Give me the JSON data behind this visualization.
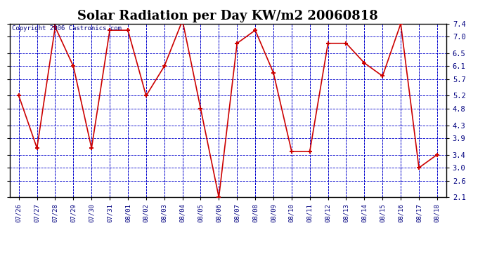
{
  "title": "Solar Radiation per Day KW/m2 20060818",
  "copyright_text": "Copyright 2006 Castronics.com",
  "x_labels": [
    "07/26",
    "07/27",
    "07/28",
    "07/29",
    "07/30",
    "07/31",
    "08/01",
    "08/02",
    "08/03",
    "08/04",
    "08/05",
    "08/06",
    "08/07",
    "08/08",
    "08/09",
    "08/10",
    "08/11",
    "08/12",
    "08/13",
    "08/14",
    "08/15",
    "08/16",
    "08/17",
    "08/18"
  ],
  "y_values": [
    5.2,
    3.6,
    7.3,
    6.1,
    3.6,
    7.2,
    7.2,
    5.2,
    6.1,
    7.5,
    4.8,
    2.1,
    6.8,
    7.2,
    5.9,
    3.5,
    3.5,
    6.8,
    6.8,
    6.2,
    5.8,
    7.4,
    3.0,
    3.4
  ],
  "yticks": [
    2.1,
    2.6,
    3.0,
    3.4,
    3.9,
    4.3,
    4.8,
    5.2,
    5.7,
    6.1,
    6.5,
    7.0,
    7.4
  ],
  "line_color": "#cc0000",
  "marker_color": "#cc0000",
  "fig_bg_color": "#ffffff",
  "plot_bg_color": "#ffffff",
  "grid_color": "#0000cc",
  "title_fontsize": 13,
  "copyright_fontsize": 6.5,
  "tick_label_color": "#000080",
  "border_color": "#000000",
  "ylim_min": 2.1,
  "ylim_max": 7.4
}
